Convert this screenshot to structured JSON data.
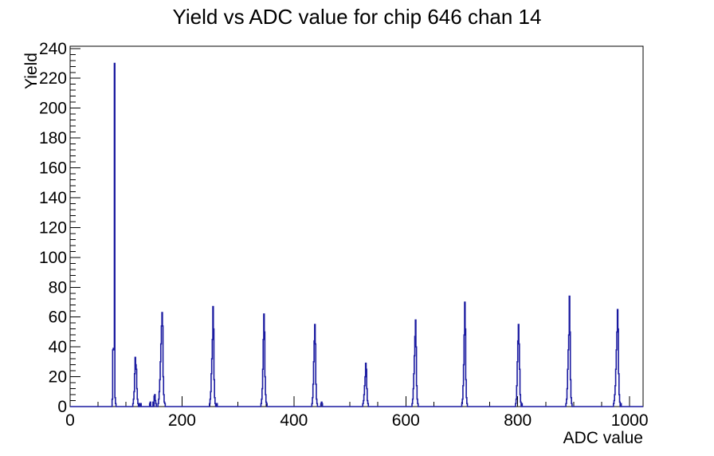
{
  "title": "Yield vs ADC value for chip 646 chan 14",
  "chart_data": {
    "type": "bar",
    "subtype": "histogram-outline",
    "title": "Yield vs ADC value for chip 646 chan 14",
    "xlabel": "ADC value",
    "ylabel": "Yield",
    "xlim": [
      0,
      1024
    ],
    "ylim": [
      0,
      241.5
    ],
    "x_ticks": [
      0,
      200,
      400,
      600,
      800,
      1000
    ],
    "x_minor_tick_step": 50,
    "y_ticks": [
      0,
      20,
      40,
      60,
      80,
      100,
      120,
      140,
      160,
      180,
      200,
      220,
      240
    ],
    "y_minor_tick_step": 4,
    "grid": false,
    "legend": "none",
    "line_color": "#1a1aa0",
    "axis_color": "#000000",
    "bins_note": "sparse nonzero bins as [adc_value, yield]; all other bins are 0",
    "bins": [
      [
        75,
        5
      ],
      [
        76,
        38
      ],
      [
        77,
        39
      ],
      [
        78,
        38
      ],
      [
        79,
        230
      ],
      [
        80,
        6
      ],
      [
        81,
        2
      ],
      [
        112,
        2
      ],
      [
        113,
        5
      ],
      [
        114,
        10
      ],
      [
        115,
        22
      ],
      [
        116,
        33
      ],
      [
        117,
        28
      ],
      [
        118,
        25
      ],
      [
        119,
        12
      ],
      [
        120,
        5
      ],
      [
        121,
        2
      ],
      [
        124,
        2
      ],
      [
        126,
        2
      ],
      [
        142,
        2
      ],
      [
        143,
        3
      ],
      [
        148,
        3
      ],
      [
        150,
        7
      ],
      [
        151,
        8
      ],
      [
        152,
        4
      ],
      [
        153,
        2
      ],
      [
        157,
        2
      ],
      [
        158,
        5
      ],
      [
        159,
        10
      ],
      [
        160,
        18
      ],
      [
        161,
        30
      ],
      [
        162,
        42
      ],
      [
        163,
        54
      ],
      [
        164,
        63
      ],
      [
        165,
        54
      ],
      [
        166,
        20
      ],
      [
        167,
        8
      ],
      [
        168,
        3
      ],
      [
        169,
        2
      ],
      [
        249,
        2
      ],
      [
        250,
        5
      ],
      [
        251,
        10
      ],
      [
        252,
        22
      ],
      [
        253,
        32
      ],
      [
        254,
        45
      ],
      [
        255,
        67
      ],
      [
        256,
        52
      ],
      [
        257,
        18
      ],
      [
        258,
        6
      ],
      [
        259,
        2
      ],
      [
        262,
        2
      ],
      [
        341,
        2
      ],
      [
        342,
        5
      ],
      [
        343,
        12
      ],
      [
        344,
        25
      ],
      [
        345,
        45
      ],
      [
        346,
        62
      ],
      [
        347,
        50
      ],
      [
        348,
        20
      ],
      [
        349,
        8
      ],
      [
        350,
        3
      ],
      [
        351,
        2
      ],
      [
        432,
        2
      ],
      [
        433,
        6
      ],
      [
        434,
        15
      ],
      [
        435,
        30
      ],
      [
        436,
        44
      ],
      [
        437,
        55
      ],
      [
        438,
        42
      ],
      [
        439,
        15
      ],
      [
        440,
        5
      ],
      [
        441,
        2
      ],
      [
        448,
        2
      ],
      [
        449,
        3
      ],
      [
        450,
        2
      ],
      [
        523,
        2
      ],
      [
        524,
        4
      ],
      [
        525,
        8
      ],
      [
        526,
        14
      ],
      [
        527,
        20
      ],
      [
        528,
        29
      ],
      [
        529,
        25
      ],
      [
        530,
        12
      ],
      [
        531,
        4
      ],
      [
        532,
        2
      ],
      [
        611,
        2
      ],
      [
        612,
        5
      ],
      [
        613,
        12
      ],
      [
        614,
        22
      ],
      [
        615,
        34
      ],
      [
        616,
        47
      ],
      [
        617,
        58
      ],
      [
        618,
        40
      ],
      [
        619,
        14
      ],
      [
        620,
        5
      ],
      [
        621,
        2
      ],
      [
        700,
        2
      ],
      [
        701,
        5
      ],
      [
        702,
        14
      ],
      [
        703,
        28
      ],
      [
        704,
        48
      ],
      [
        705,
        70
      ],
      [
        706,
        52
      ],
      [
        707,
        18
      ],
      [
        708,
        6
      ],
      [
        709,
        2
      ],
      [
        796,
        2
      ],
      [
        797,
        5
      ],
      [
        798,
        14
      ],
      [
        799,
        30
      ],
      [
        800,
        44
      ],
      [
        801,
        55
      ],
      [
        802,
        42
      ],
      [
        803,
        25
      ],
      [
        804,
        8
      ],
      [
        805,
        3
      ],
      [
        807,
        2
      ],
      [
        886,
        2
      ],
      [
        887,
        5
      ],
      [
        888,
        12
      ],
      [
        889,
        25
      ],
      [
        890,
        38
      ],
      [
        891,
        48
      ],
      [
        892,
        74
      ],
      [
        893,
        50
      ],
      [
        894,
        18
      ],
      [
        895,
        6
      ],
      [
        896,
        2
      ],
      [
        971,
        2
      ],
      [
        972,
        4
      ],
      [
        973,
        8
      ],
      [
        974,
        14
      ],
      [
        975,
        25
      ],
      [
        976,
        38
      ],
      [
        977,
        50
      ],
      [
        978,
        65
      ],
      [
        979,
        52
      ],
      [
        980,
        22
      ],
      [
        981,
        8
      ],
      [
        982,
        3
      ],
      [
        984,
        2
      ]
    ]
  }
}
